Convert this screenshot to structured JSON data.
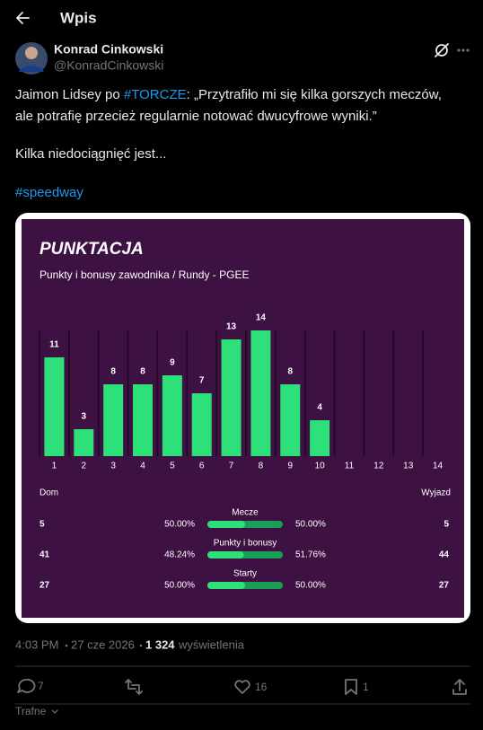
{
  "header": {
    "title": "Wpis"
  },
  "author": {
    "name": "Konrad Cinkowski",
    "handle": "@KonradCinkowski"
  },
  "tweet": {
    "line1_prefix": "Jaimon Lidsey po ",
    "line1_hashtag": "#TORCZE",
    "line1_rest": ": „Przytrafiło mi się kilka gorszych meczów,",
    "line2": "ale potrafię przecież regularnie notować dwucyfrowe wyniki.”",
    "line3": "Kilka niedociągnięć jest...",
    "hashtag": "#speedway"
  },
  "chart_data": {
    "type": "bar",
    "title": "PUNKTACJA",
    "subtitle": "Punkty i bonusy zawodnika / Rundy - PGEE",
    "categories": [
      "1",
      "2",
      "3",
      "4",
      "5",
      "6",
      "7",
      "8",
      "9",
      "10",
      "11",
      "12",
      "13",
      "14"
    ],
    "values": [
      11,
      3,
      8,
      8,
      9,
      7,
      13,
      14,
      8,
      4,
      null,
      null,
      null,
      null
    ],
    "color": "#2de07a",
    "ylim": [
      0,
      14
    ]
  },
  "stats": {
    "home_label": "Dom",
    "away_label": "Wyjazd",
    "rows": [
      {
        "label": "Mecze",
        "home": "5",
        "home_pct": "50.00%",
        "away_pct": "50.00%",
        "away": "5"
      },
      {
        "label": "Punkty i bonusy",
        "home": "41",
        "home_pct": "48.24%",
        "away_pct": "51.76%",
        "away": "44"
      },
      {
        "label": "Starty",
        "home": "27",
        "home_pct": "50.00%",
        "away_pct": "50.00%",
        "away": "27"
      }
    ]
  },
  "meta": {
    "time": "4:03 PM",
    "date": "27 cze 2026",
    "views": "1 324",
    "views_label": "wyświetlenia"
  },
  "actions": {
    "replies": "7",
    "likes": "16",
    "bookmarks": "1"
  },
  "footer": {
    "sort": "Trafne"
  }
}
